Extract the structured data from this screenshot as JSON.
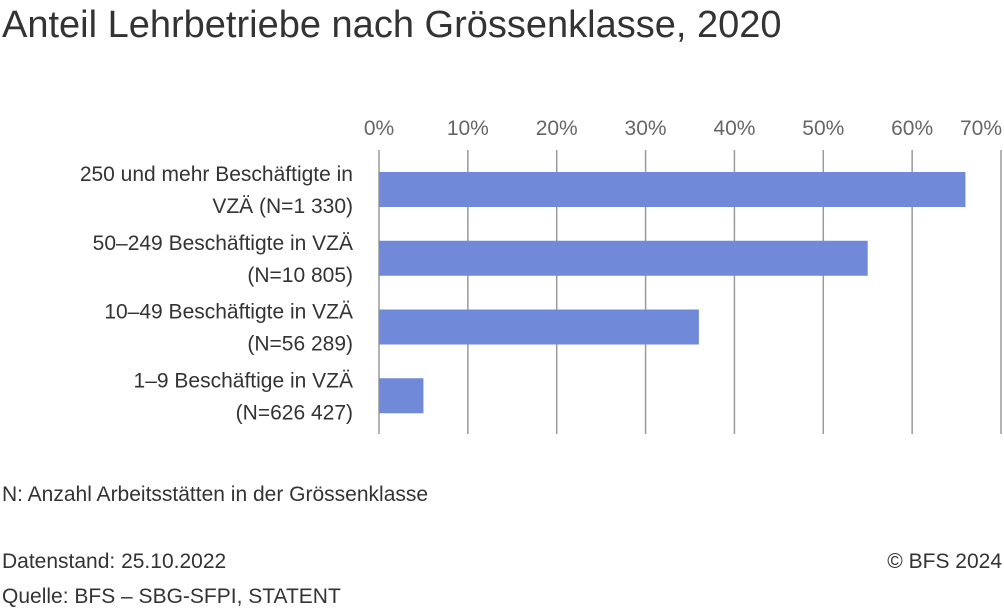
{
  "title": "Anteil Lehrbetriebe nach Grössenklasse, 2020",
  "note": "N: Anzahl Arbeitsstätten in der Grössenklasse",
  "footer": {
    "datestand": "Datenstand: 25.10.2022",
    "quelle": "Quelle: BFS – SBG-SFPI, STATENT",
    "copyright": "© BFS 2024"
  },
  "chart_data": {
    "type": "bar",
    "orientation": "horizontal",
    "title": "Anteil Lehrbetriebe nach Grössenklasse, 2020",
    "xlabel": "",
    "ylabel": "",
    "xlim": [
      0,
      70
    ],
    "x_ticks": [
      "0%",
      "10%",
      "20%",
      "30%",
      "40%",
      "50%",
      "60%",
      "70%"
    ],
    "grid": true,
    "bar_color": "#7189d9",
    "categories": [
      [
        "250 und mehr Beschäftigte in",
        "VZÄ (N=1 330)"
      ],
      [
        "50–249 Beschäftigte in VZÄ",
        "(N=10 805)"
      ],
      [
        "10–49 Beschäftigte in VZÄ",
        "(N=56 289)"
      ],
      [
        "1–9 Beschäftige in VZÄ",
        "(N=626 427)"
      ]
    ],
    "values": [
      66,
      55,
      36,
      5
    ]
  }
}
